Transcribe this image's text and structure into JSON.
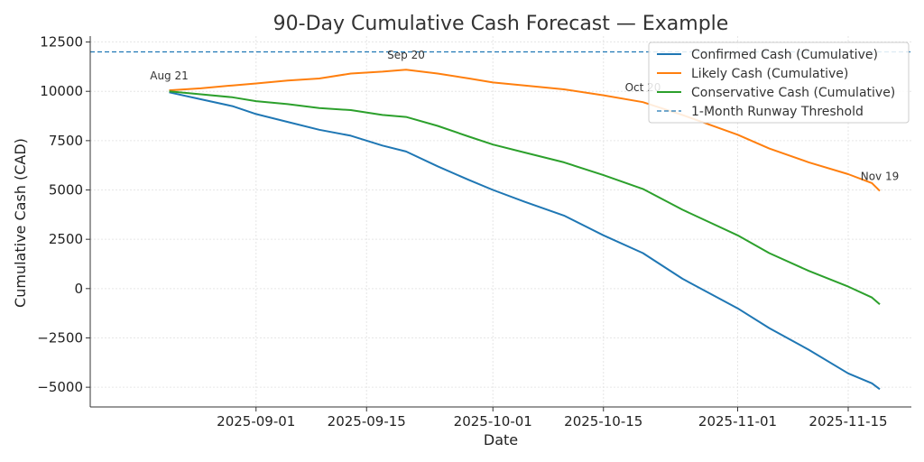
{
  "chart_data": {
    "type": "line",
    "title": "90-Day Cumulative Cash Forecast — Example",
    "xlabel": "Date",
    "ylabel": "Cumulative Cash (CAD)",
    "xlim": [
      "2025-08-11",
      "2025-11-23"
    ],
    "ylim": [
      -6000,
      12800
    ],
    "x_ticks": [
      {
        "date": "2025-09-01",
        "label": "2025-09-01"
      },
      {
        "date": "2025-09-15",
        "label": "2025-09-15"
      },
      {
        "date": "2025-10-01",
        "label": "2025-10-01"
      },
      {
        "date": "2025-10-15",
        "label": "2025-10-15"
      },
      {
        "date": "2025-11-01",
        "label": "2025-11-01"
      },
      {
        "date": "2025-11-15",
        "label": "2025-11-15"
      }
    ],
    "y_ticks": [
      {
        "value": 12500,
        "label": "12500"
      },
      {
        "value": 10000,
        "label": "10000"
      },
      {
        "value": 7500,
        "label": "7500"
      },
      {
        "value": 5000,
        "label": "5000"
      },
      {
        "value": 2500,
        "label": "2500"
      },
      {
        "value": 0,
        "label": "0"
      },
      {
        "value": -2500,
        "label": "−2500"
      },
      {
        "value": -5000,
        "label": "−5000"
      }
    ],
    "grid": true,
    "legend_position": "top-right",
    "series": [
      {
        "name": "Confirmed Cash (Cumulative)",
        "color": "#1f77b4",
        "style": "solid",
        "points": [
          [
            "2025-08-21",
            9950
          ],
          [
            "2025-08-25",
            9600
          ],
          [
            "2025-08-29",
            9250
          ],
          [
            "2025-09-01",
            8850
          ],
          [
            "2025-09-05",
            8450
          ],
          [
            "2025-09-09",
            8050
          ],
          [
            "2025-09-13",
            7750
          ],
          [
            "2025-09-17",
            7250
          ],
          [
            "2025-09-20",
            6950
          ],
          [
            "2025-09-24",
            6200
          ],
          [
            "2025-09-28",
            5500
          ],
          [
            "2025-10-01",
            5000
          ],
          [
            "2025-10-05",
            4400
          ],
          [
            "2025-10-10",
            3700
          ],
          [
            "2025-10-15",
            2700
          ],
          [
            "2025-10-20",
            1800
          ],
          [
            "2025-10-25",
            500
          ],
          [
            "2025-11-01",
            -1000
          ],
          [
            "2025-11-05",
            -2000
          ],
          [
            "2025-11-10",
            -3100
          ],
          [
            "2025-11-15",
            -4300
          ],
          [
            "2025-11-18",
            -4800
          ],
          [
            "2025-11-19",
            -5100
          ]
        ]
      },
      {
        "name": "Likely Cash (Cumulative)",
        "color": "#ff7f0e",
        "style": "solid",
        "points": [
          [
            "2025-08-21",
            10050
          ],
          [
            "2025-08-25",
            10150
          ],
          [
            "2025-08-29",
            10300
          ],
          [
            "2025-09-01",
            10400
          ],
          [
            "2025-09-05",
            10550
          ],
          [
            "2025-09-09",
            10650
          ],
          [
            "2025-09-13",
            10900
          ],
          [
            "2025-09-17",
            11000
          ],
          [
            "2025-09-20",
            11100
          ],
          [
            "2025-09-24",
            10900
          ],
          [
            "2025-09-28",
            10650
          ],
          [
            "2025-10-01",
            10450
          ],
          [
            "2025-10-05",
            10300
          ],
          [
            "2025-10-10",
            10100
          ],
          [
            "2025-10-15",
            9800
          ],
          [
            "2025-10-20",
            9450
          ],
          [
            "2025-10-25",
            8800
          ],
          [
            "2025-11-01",
            7800
          ],
          [
            "2025-11-05",
            7100
          ],
          [
            "2025-11-10",
            6400
          ],
          [
            "2025-11-15",
            5800
          ],
          [
            "2025-11-18",
            5350
          ],
          [
            "2025-11-19",
            4950
          ]
        ]
      },
      {
        "name": "Conservative Cash (Cumulative)",
        "color": "#2ca02c",
        "style": "solid",
        "points": [
          [
            "2025-08-21",
            10000
          ],
          [
            "2025-08-25",
            9850
          ],
          [
            "2025-08-29",
            9700
          ],
          [
            "2025-09-01",
            9500
          ],
          [
            "2025-09-05",
            9350
          ],
          [
            "2025-09-09",
            9150
          ],
          [
            "2025-09-13",
            9050
          ],
          [
            "2025-09-17",
            8800
          ],
          [
            "2025-09-20",
            8700
          ],
          [
            "2025-09-24",
            8250
          ],
          [
            "2025-09-28",
            7700
          ],
          [
            "2025-10-01",
            7300
          ],
          [
            "2025-10-05",
            6900
          ],
          [
            "2025-10-10",
            6400
          ],
          [
            "2025-10-15",
            5750
          ],
          [
            "2025-10-20",
            5050
          ],
          [
            "2025-10-25",
            4000
          ],
          [
            "2025-11-01",
            2700
          ],
          [
            "2025-11-05",
            1800
          ],
          [
            "2025-11-10",
            900
          ],
          [
            "2025-11-15",
            100
          ],
          [
            "2025-11-18",
            -450
          ],
          [
            "2025-11-19",
            -800
          ]
        ]
      },
      {
        "name": "1-Month Runway Threshold",
        "color": "#1f77b4",
        "style": "dashed",
        "threshold": 12000
      }
    ],
    "annotations": [
      {
        "text": "Aug 21",
        "date": "2025-08-21",
        "value": 10050
      },
      {
        "text": "Sep 20",
        "date": "2025-09-20",
        "value": 11100
      },
      {
        "text": "Oct 20",
        "date": "2025-10-20",
        "value": 9450
      },
      {
        "text": "Nov 19",
        "date": "2025-11-19",
        "value": 4950
      }
    ]
  }
}
